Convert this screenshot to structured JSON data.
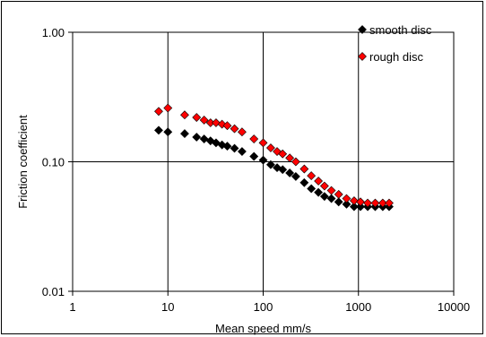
{
  "chart_data": {
    "type": "scatter",
    "xlabel": "Mean speed mm/s",
    "ylabel": "Friction coefficient",
    "x_scale": "log",
    "y_scale": "log",
    "xlim": [
      1,
      10000
    ],
    "ylim": [
      0.01,
      1.0
    ],
    "x_ticks": [
      1,
      10,
      100,
      1000,
      10000
    ],
    "x_tick_labels": [
      "1",
      "10",
      "100",
      "1000",
      "10000"
    ],
    "y_ticks": [
      0.01,
      0.1,
      1.0
    ],
    "y_tick_labels": [
      "0.01",
      "0.10",
      "1.00"
    ],
    "grid": true,
    "legend_position": "top-right",
    "series": [
      {
        "name": "smooth disc",
        "color": "#000000",
        "marker": "diamond",
        "x": [
          8,
          10,
          15,
          20,
          24,
          28,
          32,
          37,
          42,
          50,
          60,
          80,
          100,
          120,
          140,
          160,
          190,
          220,
          270,
          320,
          380,
          440,
          520,
          620,
          750,
          900,
          1050,
          1250,
          1500,
          1800,
          2100
        ],
        "y": [
          0.175,
          0.17,
          0.165,
          0.155,
          0.15,
          0.145,
          0.14,
          0.135,
          0.132,
          0.127,
          0.12,
          0.11,
          0.103,
          0.095,
          0.09,
          0.087,
          0.082,
          0.077,
          0.069,
          0.062,
          0.058,
          0.054,
          0.052,
          0.049,
          0.047,
          0.045,
          0.045,
          0.045,
          0.045,
          0.045,
          0.045
        ]
      },
      {
        "name": "rough disc",
        "color": "#ff0000",
        "marker": "diamond",
        "x": [
          8,
          10,
          15,
          20,
          24,
          28,
          32,
          37,
          42,
          50,
          60,
          80,
          100,
          120,
          140,
          160,
          190,
          220,
          270,
          320,
          380,
          440,
          520,
          620,
          750,
          900,
          1050,
          1250,
          1500,
          1800,
          2100
        ],
        "y": [
          0.245,
          0.26,
          0.23,
          0.22,
          0.21,
          0.2,
          0.2,
          0.195,
          0.19,
          0.18,
          0.17,
          0.15,
          0.14,
          0.128,
          0.12,
          0.115,
          0.107,
          0.1,
          0.088,
          0.078,
          0.071,
          0.065,
          0.06,
          0.056,
          0.052,
          0.05,
          0.049,
          0.048,
          0.048,
          0.048,
          0.048
        ]
      }
    ]
  },
  "colors": {
    "background": "#ffffff",
    "axis": "#000000",
    "grid": "#000000",
    "marker_outline": "#000000"
  }
}
